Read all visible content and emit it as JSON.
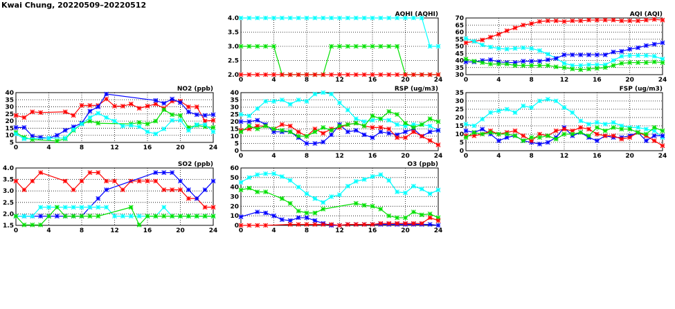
{
  "title": "Kwai Chung, 20220509–20220512",
  "colors": {
    "red": "#ff0000",
    "blue": "#0000ff",
    "green": "#00e000",
    "cyan": "#00ffff"
  },
  "chart_data": [
    {
      "id": "aqhi",
      "type": "line",
      "title": "AQHI (AQHI)",
      "xlim": [
        0,
        24
      ],
      "xticks": [
        0,
        4,
        8,
        12,
        16,
        20,
        24
      ],
      "ylim": [
        2,
        4
      ],
      "yticks": [
        "2.0",
        "2.5",
        "3.0",
        "3.5",
        "4.0"
      ],
      "grid": true,
      "series": [
        {
          "name": "cyan",
          "values": [
            4,
            4,
            4,
            4,
            4,
            4,
            4,
            4,
            4,
            4,
            4,
            4,
            4,
            4,
            4,
            4,
            4,
            4,
            4,
            4,
            4,
            4,
            4,
            3,
            3
          ]
        },
        {
          "name": "green",
          "values": [
            3,
            3,
            3,
            3,
            3,
            2,
            2,
            2,
            2,
            2,
            2,
            3,
            3,
            3,
            3,
            3,
            3,
            3,
            3,
            3,
            2,
            2,
            2,
            2,
            2
          ]
        },
        {
          "name": "red",
          "values": [
            2,
            2,
            2,
            2,
            2,
            2,
            2,
            2,
            2,
            2,
            2,
            2,
            2,
            2,
            2,
            2,
            2,
            2,
            2,
            2,
            2,
            2,
            2,
            2,
            2
          ]
        }
      ]
    },
    {
      "id": "aqi",
      "type": "line",
      "title": "AQI (AQI)",
      "xlim": [
        0,
        24
      ],
      "xticks": [
        0,
        4,
        8,
        12,
        16,
        20,
        24
      ],
      "ylim": [
        30,
        70
      ],
      "yticks": [
        "30",
        "35",
        "40",
        "45",
        "50",
        "55",
        "60",
        "65",
        "70"
      ],
      "grid": true,
      "series": [
        {
          "name": "red",
          "values": [
            52.5,
            53.5,
            54.5,
            56.5,
            58.5,
            61,
            63,
            65,
            66,
            67.5,
            68,
            68,
            67.5,
            68,
            68,
            68.5,
            68.5,
            68.5,
            68.5,
            68,
            68,
            68,
            68.5,
            69,
            68.5
          ]
        },
        {
          "name": "cyan",
          "values": [
            55.5,
            53.5,
            51,
            49.5,
            48.5,
            48,
            48.5,
            49,
            48.5,
            47,
            44.5,
            41.5,
            38,
            36.5,
            36.5,
            37,
            37,
            37,
            40,
            43,
            43.5,
            43.5,
            43.5,
            43,
            41
          ]
        },
        {
          "name": "blue",
          "values": [
            39,
            39,
            40,
            40.5,
            39,
            38.5,
            38.5,
            39.5,
            39.5,
            39.5,
            40.5,
            41.5,
            44,
            44,
            44,
            44,
            44,
            44,
            46,
            46.5,
            48,
            49,
            50.5,
            51.5,
            52.5
          ]
        },
        {
          "name": "green",
          "values": [
            41,
            39.5,
            38.5,
            37.5,
            37.5,
            37.5,
            36.5,
            36.5,
            36.5,
            36.5,
            36.5,
            35.5,
            35,
            34,
            33.5,
            34,
            34.5,
            35,
            36.5,
            38,
            38.5,
            38.5,
            38.5,
            39,
            38.5
          ]
        }
      ]
    },
    {
      "id": "no2",
      "type": "line",
      "title": "NO2 (ppb)",
      "xlim": [
        0,
        24
      ],
      "xticks": [
        0,
        4,
        8,
        12,
        16,
        20,
        24
      ],
      "ylim": [
        5,
        40
      ],
      "yticks": [
        "5",
        "10",
        "15",
        "20",
        "25",
        "30",
        "35",
        "40"
      ],
      "grid": true,
      "series": [
        {
          "name": "red",
          "values": [
            24,
            22.5,
            26.5,
            26,
            null,
            null,
            26.5,
            24,
            31,
            31,
            31,
            35.5,
            30.5,
            30.5,
            32,
            29,
            30.5,
            32,
            29,
            34,
            34,
            30,
            30,
            20,
            20.5
          ]
        },
        {
          "name": "blue",
          "values": [
            15.5,
            15.5,
            9.5,
            8.5,
            8,
            10,
            13.5,
            16,
            18.5,
            27,
            30,
            39,
            null,
            null,
            null,
            null,
            null,
            34.5,
            32.5,
            35.5,
            33,
            26.5,
            24.5,
            24,
            24.5
          ]
        },
        {
          "name": "green",
          "values": [
            12,
            8.5,
            7,
            null,
            null,
            6,
            7.5,
            13.5,
            18,
            20,
            18.5,
            null,
            null,
            null,
            18,
            19,
            18,
            20,
            28,
            24.5,
            24,
            15.5,
            17,
            16,
            15.5
          ]
        },
        {
          "name": "cyan",
          "values": [
            11,
            7.5,
            null,
            null,
            8,
            null,
            8,
            14,
            18,
            22.5,
            25.5,
            22.5,
            20,
            16.5,
            17,
            16,
            12.5,
            11,
            14.5,
            20.5,
            20.5,
            13.5,
            17.5,
            17.5,
            12.5
          ]
        }
      ]
    },
    {
      "id": "rsp",
      "type": "line",
      "title": "RSP (ug/m3)",
      "xlim": [
        0,
        24
      ],
      "xticks": [
        0,
        4,
        8,
        12,
        16,
        20,
        24
      ],
      "ylim": [
        0,
        40
      ],
      "yticks": [
        "0",
        "5",
        "10",
        "15",
        "20",
        "25",
        "30",
        "35",
        "40"
      ],
      "grid": true,
      "series": [
        {
          "name": "cyan",
          "values": [
            25,
            24,
            29,
            34,
            34,
            35,
            32,
            35,
            34,
            39,
            40,
            39,
            33,
            28,
            22,
            20,
            21,
            22,
            21,
            18,
            17,
            18,
            18,
            17,
            14
          ]
        },
        {
          "name": "blue",
          "values": [
            20,
            20,
            21,
            18,
            13,
            13,
            13,
            9,
            5,
            5,
            6,
            11,
            18,
            13,
            14,
            11,
            9,
            13,
            12,
            11,
            13,
            15,
            10,
            13,
            14
          ]
        },
        {
          "name": "red",
          "values": [
            14,
            15,
            17,
            17,
            15,
            18,
            17,
            13,
            10,
            15,
            12,
            15,
            16,
            18,
            19,
            17,
            16,
            16,
            15,
            9,
            9,
            13,
            10,
            7,
            4
          ]
        },
        {
          "name": "green",
          "values": [
            13,
            17,
            15,
            17,
            15,
            14,
            13,
            10,
            10,
            13,
            16,
            14,
            17,
            18,
            19,
            17,
            24,
            22,
            27,
            25,
            19,
            16,
            18,
            22,
            20
          ]
        }
      ]
    },
    {
      "id": "fsp",
      "type": "line",
      "title": "FSP (ug/m3)",
      "xlim": [
        0,
        24
      ],
      "xticks": [
        0,
        4,
        8,
        12,
        16,
        20,
        24
      ],
      "ylim": [
        0,
        35
      ],
      "yticks": [
        "0",
        "5",
        "10",
        "15",
        "20",
        "25",
        "30",
        "35"
      ],
      "grid": true,
      "series": [
        {
          "name": "cyan",
          "values": [
            16,
            15,
            19,
            23,
            24,
            25,
            23,
            27,
            26,
            30,
            31,
            30,
            26,
            23,
            18,
            16,
            17,
            16,
            17,
            15,
            14,
            14,
            13,
            12,
            8
          ]
        },
        {
          "name": "blue",
          "values": [
            12,
            11,
            13,
            10,
            6,
            8,
            9,
            6,
            5,
            4,
            5,
            8,
            14,
            9,
            11,
            8,
            6,
            9,
            8,
            8,
            9,
            11,
            6,
            9,
            9
          ]
        },
        {
          "name": "red",
          "values": [
            9,
            9,
            10,
            12,
            10,
            11,
            12,
            9,
            6,
            10,
            9,
            12,
            13,
            12,
            14,
            13,
            10,
            9,
            9,
            7,
            8,
            11,
            9,
            6,
            3
          ]
        },
        {
          "name": "green",
          "values": [
            8,
            11,
            10,
            11,
            10,
            10,
            9,
            6,
            8,
            8,
            9,
            7,
            10,
            10,
            11,
            9,
            14,
            12,
            14,
            13,
            13,
            11,
            10,
            14,
            12
          ]
        }
      ]
    },
    {
      "id": "so2",
      "type": "line",
      "title": "SO2 (ppb)",
      "xlim": [
        0,
        24
      ],
      "xticks": [
        0,
        4,
        8,
        12,
        16,
        20,
        24
      ],
      "ylim": [
        1.5,
        4.0
      ],
      "yticks": [
        "1.5",
        "2.0",
        "2.5",
        "3.0",
        "3.5",
        "4.0"
      ],
      "grid": true,
      "series": [
        {
          "name": "red",
          "values": [
            3.43,
            3.05,
            3.43,
            3.8,
            null,
            null,
            3.43,
            3.05,
            3.43,
            3.8,
            3.8,
            3.43,
            3.43,
            3.05,
            3.43,
            3.43,
            3.43,
            3.43,
            3.05,
            3.05,
            3.05,
            2.67,
            2.67,
            2.29,
            2.29
          ]
        },
        {
          "name": "blue",
          "values": [
            1.9,
            1.9,
            1.9,
            1.9,
            1.9,
            1.9,
            1.9,
            1.9,
            1.9,
            2.29,
            2.67,
            3.05,
            null,
            null,
            null,
            null,
            null,
            3.8,
            3.8,
            3.8,
            3.43,
            3.05,
            2.67,
            3.05,
            3.43
          ]
        },
        {
          "name": "cyan",
          "values": [
            1.9,
            1.9,
            1.9,
            2.29,
            2.29,
            2.29,
            2.29,
            2.29,
            2.29,
            2.29,
            2.29,
            2.29,
            1.9,
            1.9,
            1.9,
            1.9,
            1.9,
            1.9,
            2.29,
            1.9,
            1.9,
            1.9,
            1.9,
            1.9,
            1.9
          ]
        },
        {
          "name": "green",
          "values": [
            1.9,
            1.52,
            1.52,
            1.52,
            1.9,
            2.29,
            1.9,
            1.9,
            1.9,
            1.9,
            1.9,
            null,
            null,
            null,
            2.29,
            1.52,
            1.9,
            1.9,
            1.9,
            1.9,
            1.9,
            1.9,
            1.9,
            1.9,
            1.9
          ]
        }
      ]
    },
    {
      "id": "o3",
      "type": "line",
      "title": "O3 (ppb)",
      "xlim": [
        0,
        24
      ],
      "xticks": [
        0,
        4,
        8,
        12,
        16,
        20,
        24
      ],
      "ylim": [
        0,
        60
      ],
      "yticks": [
        "0",
        "10",
        "20",
        "30",
        "40",
        "50",
        "60"
      ],
      "grid": true,
      "series": [
        {
          "name": "cyan",
          "values": [
            45,
            50,
            53,
            54,
            54,
            51,
            47,
            40,
            33,
            28,
            24,
            30,
            32,
            41,
            46,
            48,
            51,
            53,
            47,
            35,
            34,
            41,
            38,
            33,
            37
          ]
        },
        {
          "name": "green",
          "values": [
            37,
            39,
            35,
            35,
            null,
            28,
            23,
            15,
            13,
            13,
            17,
            null,
            null,
            null,
            23,
            21,
            20,
            17,
            10,
            8,
            8,
            14,
            11,
            12,
            8
          ]
        },
        {
          "name": "blue",
          "values": [
            9,
            null,
            14,
            13,
            10,
            6,
            5,
            8,
            8,
            5,
            2,
            0,
            0,
            1,
            1,
            1,
            1,
            1,
            1,
            1,
            1,
            1,
            1,
            1,
            0
          ]
        },
        {
          "name": "red",
          "values": [
            0,
            0,
            0,
            0,
            null,
            null,
            1,
            1,
            1,
            1,
            1,
            1,
            0,
            1,
            1,
            1,
            1,
            2,
            2,
            2,
            2,
            2,
            2,
            8,
            5
          ]
        }
      ]
    }
  ]
}
